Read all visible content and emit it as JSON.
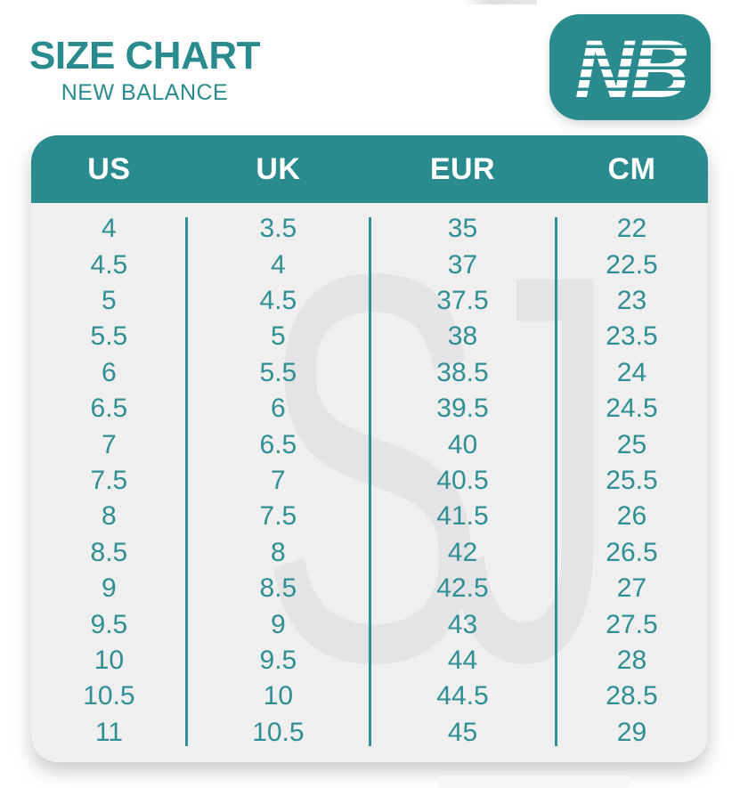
{
  "title": {
    "main": "SIZE CHART",
    "subtitle": "NEW BALANCE"
  },
  "logo": {
    "monogram": "NB"
  },
  "watermark": {
    "text": "SJ"
  },
  "colors": {
    "teal": "#2a8b8e",
    "number_teal": "#2f8f92",
    "panel_bg": "#efeff0",
    "watermark_gray": "#e4e4e6",
    "header_text": "#ffffff"
  },
  "chart_data": {
    "type": "table",
    "title": "SIZE CHART",
    "subtitle": "NEW BALANCE",
    "columns": [
      "US",
      "UK",
      "EUR",
      "CM"
    ],
    "rows": [
      [
        "4",
        "3.5",
        "35",
        "22"
      ],
      [
        "4.5",
        "4",
        "37",
        "22.5"
      ],
      [
        "5",
        "4.5",
        "37.5",
        "23"
      ],
      [
        "5.5",
        "5",
        "38",
        "23.5"
      ],
      [
        "6",
        "5.5",
        "38.5",
        "24"
      ],
      [
        "6.5",
        "6",
        "39.5",
        "24.5"
      ],
      [
        "7",
        "6.5",
        "40",
        "25"
      ],
      [
        "7.5",
        "7",
        "40.5",
        "25.5"
      ],
      [
        "8",
        "7.5",
        "41.5",
        "26"
      ],
      [
        "8.5",
        "8",
        "42",
        "26.5"
      ],
      [
        "9",
        "8.5",
        "42.5",
        "27"
      ],
      [
        "9.5",
        "9",
        "43",
        "27.5"
      ],
      [
        "10",
        "9.5",
        "44",
        "28"
      ],
      [
        "10.5",
        "10",
        "44.5",
        "28.5"
      ],
      [
        "11",
        "10.5",
        "45",
        "29"
      ]
    ]
  }
}
